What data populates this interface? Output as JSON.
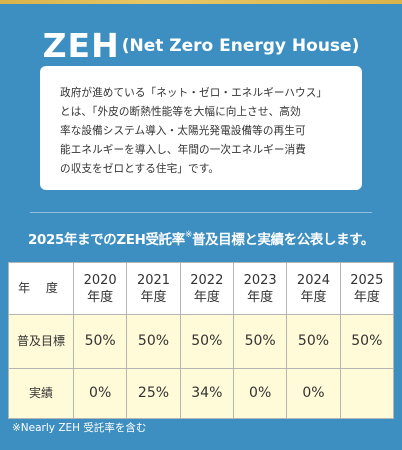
{
  "heading": {
    "title_main": "ZEH",
    "title_paren": "(Net Zero Energy House)"
  },
  "description": {
    "lines": [
      "政府が進めている「ネット・ゼロ・エネルギーハウス」",
      "とは、「外皮の断熱性能等を大幅に向上させ、高効",
      "率な設備システム導入・太陽光発電設備等の再生可",
      "能エネルギーを導入し、年間の一次エネルギー消費",
      "の収支をゼロとする住宅」です。"
    ]
  },
  "goals_heading": {
    "text_before": "2025年までのZEH受託率",
    "note_mark": "※",
    "text_after": "普及目標と実績を公表します。"
  },
  "table": {
    "corner_label": "年 度",
    "year_unit": "年度",
    "years": [
      "2020",
      "2021",
      "2022",
      "2023",
      "2024",
      "2025"
    ],
    "target_label": "普及目標",
    "targets": [
      "50%",
      "50%",
      "50%",
      "50%",
      "50%",
      "50%"
    ],
    "actual_label": "実績",
    "actuals": [
      "0%",
      "25%",
      "34%",
      "0%",
      "0%",
      ""
    ]
  },
  "footnote": "※Nearly ZEH 受託率を含む"
}
